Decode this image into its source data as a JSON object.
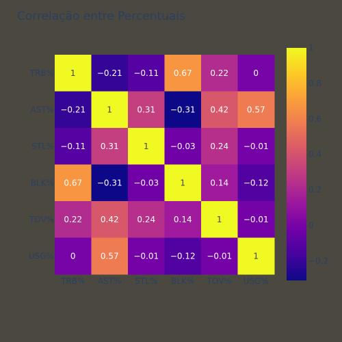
{
  "chart_data": {
    "type": "heatmap",
    "title": "Correlação entre Percentuais",
    "x_categories": [
      "TRB%",
      "AST%",
      "STL%",
      "BLK%",
      "TOV%",
      "USG%"
    ],
    "y_categories": [
      "TRB%",
      "AST%",
      "STL%",
      "BLK%",
      "TOV%",
      "USG%"
    ],
    "values": [
      [
        1,
        -0.21,
        -0.11,
        0.67,
        0.22,
        0
      ],
      [
        -0.21,
        1,
        0.31,
        -0.31,
        0.42,
        0.57
      ],
      [
        -0.11,
        0.31,
        1,
        -0.03,
        0.24,
        -0.01
      ],
      [
        0.67,
        -0.31,
        -0.03,
        1,
        0.14,
        -0.12
      ],
      [
        0.22,
        0.42,
        0.24,
        0.14,
        1,
        -0.01
      ],
      [
        0,
        0.57,
        -0.01,
        -0.12,
        -0.01,
        1
      ]
    ],
    "cell_labels": [
      [
        "1",
        "−0.21",
        "−0.11",
        "0.67",
        "0.22",
        "0"
      ],
      [
        "−0.21",
        "1",
        "0.31",
        "−0.31",
        "0.42",
        "0.57"
      ],
      [
        "−0.11",
        "0.31",
        "1",
        "−0.03",
        "0.24",
        "−0.01"
      ],
      [
        "0.67",
        "−0.31",
        "−0.03",
        "1",
        "0.14",
        "−0.12"
      ],
      [
        "0.22",
        "0.42",
        "0.24",
        "0.14",
        "1",
        "−0.01"
      ],
      [
        "0",
        "0.57",
        "−0.01",
        "−0.12",
        "−0.01",
        "1"
      ]
    ],
    "colorscale_name": "Plasma",
    "zrange": [
      -0.31,
      1
    ],
    "colorbar_ticks": [
      -0.2,
      0,
      0.2,
      0.4,
      0.6,
      0.8,
      1
    ],
    "colorbar_tick_labels": [
      "−0.2",
      "0",
      "0.2",
      "0.4",
      "0.6",
      "0.8",
      "1"
    ],
    "colors": {
      "background": "#4b4840",
      "text": "#2a3f5f",
      "plasma": [
        "#0d0887",
        "#46039f",
        "#7201a8",
        "#9c179e",
        "#bd3786",
        "#d8576b",
        "#ed7953",
        "#fb9f3a",
        "#fdca26",
        "#f0f921"
      ]
    }
  }
}
